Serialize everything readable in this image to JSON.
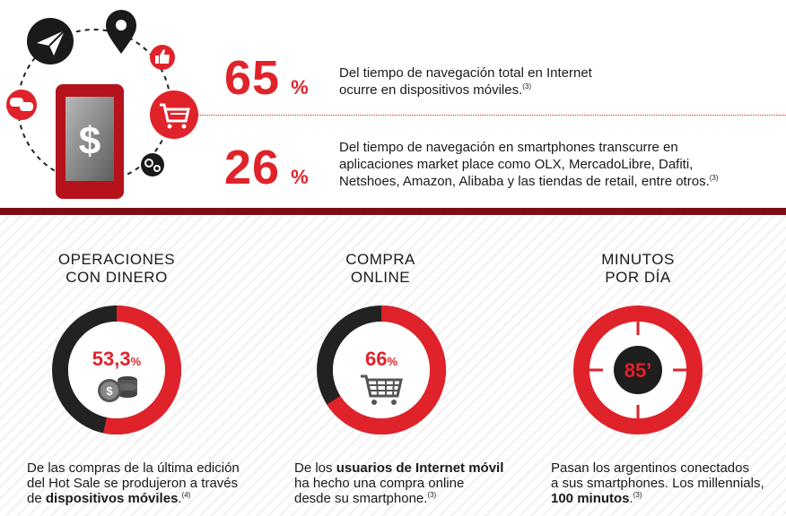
{
  "stats": [
    {
      "number": "65",
      "sign": "%",
      "line1": "Del tiempo de navegación total en Internet",
      "line2": "ocurre en dispositivos móviles.",
      "ref": "(3)"
    },
    {
      "number": "26",
      "sign": "%",
      "line1": "Del tiempo de navegación en smartphones transcurre en",
      "line2": "aplicaciones market place como OLX, MercadoLibre, Dafiti,",
      "line3": "Netshoes, Amazon, Alibaba y las tiendas de retail, entre otros.",
      "ref": "(3)"
    }
  ],
  "columns": [
    {
      "title1": "OPERACIONES",
      "title2": "CON DINERO",
      "ring_value": "53,3",
      "ring_unit": "%",
      "ring_fraction": 0.533,
      "text_l1": "De las compras de la última edición",
      "text_l2": "del Hot Sale se produjeron a través",
      "text_l3_pre": "de ",
      "text_l3_bold": "dispositivos móviles",
      "text_l3_post": ".",
      "ref": "(4)"
    },
    {
      "title1": "COMPRA",
      "title2": "ONLINE",
      "ring_value": "66",
      "ring_unit": "%",
      "ring_fraction": 0.66,
      "text_l1_pre": "De los ",
      "text_l1_bold": "usuarios de Internet móvil",
      "text_l2": "ha hecho una compra online",
      "text_l3": "desde su smartphone.",
      "ref": "(3)"
    },
    {
      "title1": "MINUTOS",
      "title2": "POR DÍA",
      "clock_value": "85’",
      "text_l1": "Pasan los argentinos conectados",
      "text_l2": "a sus smartphones. Los millennials,",
      "text_l3_bold": "100 minutos",
      "text_l3_post": ".",
      "ref": "(3)"
    }
  ],
  "icons": [
    "paper-plane-icon",
    "map-pin-icon",
    "thumbs-up-icon",
    "shopping-cart-icon",
    "gears-icon",
    "chat-bubbles-icon",
    "dollar-icon",
    "coins-icon"
  ],
  "colors": {
    "accent": "#e0222a",
    "dark": "#222222",
    "band": "#7a0f14"
  }
}
